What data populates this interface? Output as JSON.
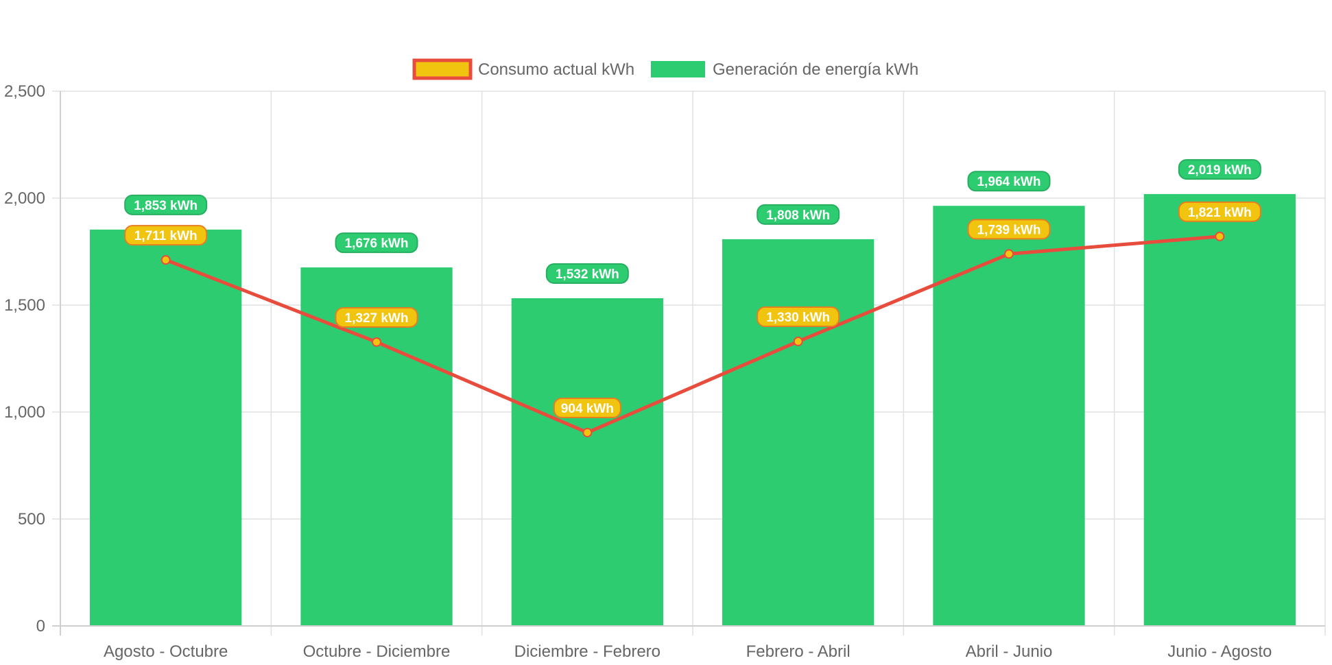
{
  "chart_data": {
    "type": "bar",
    "categories": [
      "Agosto - Octubre",
      "Octubre - Diciembre",
      "Diciembre - Febrero",
      "Febrero - Abril",
      "Abril - Junio",
      "Junio - Agosto"
    ],
    "series": [
      {
        "name": "Consumo actual kWh",
        "type": "line",
        "values": [
          1711,
          1327,
          904,
          1330,
          1739,
          1821
        ],
        "labels": [
          "1,711 kWh",
          "1,327 kWh",
          "904 kWh",
          "1,330 kWh",
          "1,739 kWh",
          "1,821 kWh"
        ],
        "color": "#e74c3c",
        "fill": "#f1c40f"
      },
      {
        "name": "Generación de energía kWh",
        "type": "bar",
        "values": [
          1853,
          1676,
          1532,
          1808,
          1964,
          2019
        ],
        "labels": [
          "1,853 kWh",
          "1,676 kWh",
          "1,532 kWh",
          "1,808 kWh",
          "1,964 kWh",
          "2,019 kWh"
        ],
        "color": "#2ecc71"
      }
    ],
    "ylim": [
      0,
      2500
    ],
    "yticks": [
      "0",
      "500",
      "1,000",
      "1,500",
      "2,000",
      "2,500"
    ],
    "ytick_values": [
      0,
      500,
      1000,
      1500,
      2000,
      2500
    ],
    "grid": true,
    "legend_position": "top",
    "title": "",
    "xlabel": "",
    "ylabel": ""
  }
}
